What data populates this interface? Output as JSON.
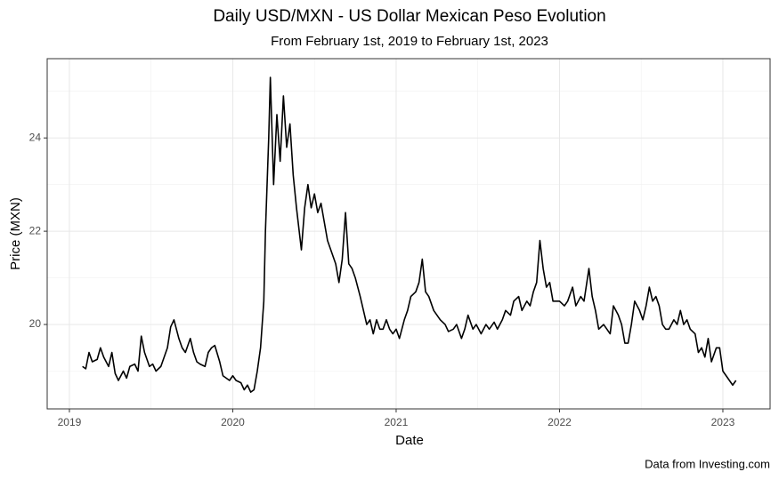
{
  "chart_data": {
    "type": "line",
    "title": "Daily USD/MXN - US Dollar Mexican Peso Evolution",
    "subtitle": "From February 1st, 2019 to February 1st, 2023",
    "x_label": "Date",
    "y_label": "Price (MXN)",
    "caption": "Data from Investing.com",
    "color": "#000000",
    "grid": true,
    "xlim": [
      2018.864,
      2023.289
    ],
    "xticks": [
      2019,
      2020,
      2021,
      2022,
      2023
    ],
    "ylim": [
      18.19,
      25.7
    ],
    "yticks": [
      20,
      22,
      24
    ],
    "x": [
      2019.08,
      2019.1,
      2019.12,
      2019.14,
      2019.17,
      2019.19,
      2019.21,
      2019.24,
      2019.26,
      2019.28,
      2019.3,
      2019.33,
      2019.35,
      2019.37,
      2019.4,
      2019.42,
      2019.44,
      2019.46,
      2019.49,
      2019.51,
      2019.53,
      2019.56,
      2019.58,
      2019.6,
      2019.62,
      2019.64,
      2019.67,
      2019.69,
      2019.71,
      2019.74,
      2019.76,
      2019.78,
      2019.8,
      2019.83,
      2019.85,
      2019.87,
      2019.89,
      2019.92,
      2019.94,
      2019.96,
      2019.98,
      2020.0,
      2020.02,
      2020.05,
      2020.07,
      2020.09,
      2020.11,
      2020.13,
      2020.15,
      2020.17,
      2020.19,
      2020.2,
      2020.22,
      2020.23,
      2020.25,
      2020.27,
      2020.29,
      2020.31,
      2020.33,
      2020.35,
      2020.37,
      2020.39,
      2020.42,
      2020.44,
      2020.46,
      2020.48,
      2020.5,
      2020.52,
      2020.54,
      2020.56,
      2020.58,
      2020.61,
      2020.63,
      2020.65,
      2020.67,
      2020.69,
      2020.71,
      2020.73,
      2020.75,
      2020.78,
      2020.8,
      2020.82,
      2020.84,
      2020.86,
      2020.88,
      2020.9,
      2020.92,
      2020.94,
      2020.96,
      2020.98,
      2021.0,
      2021.02,
      2021.05,
      2021.07,
      2021.09,
      2021.12,
      2021.14,
      2021.16,
      2021.18,
      2021.2,
      2021.23,
      2021.25,
      2021.27,
      2021.3,
      2021.32,
      2021.35,
      2021.37,
      2021.4,
      2021.42,
      2021.44,
      2021.47,
      2021.49,
      2021.52,
      2021.55,
      2021.57,
      2021.6,
      2021.62,
      2021.65,
      2021.67,
      2021.7,
      2021.72,
      2021.75,
      2021.77,
      2021.8,
      2021.82,
      2021.84,
      2021.86,
      2021.88,
      2021.9,
      2021.92,
      2021.94,
      2021.96,
      2021.98,
      2022.0,
      2022.03,
      2022.05,
      2022.08,
      2022.1,
      2022.13,
      2022.15,
      2022.18,
      2022.2,
      2022.22,
      2022.24,
      2022.27,
      2022.29,
      2022.31,
      2022.33,
      2022.36,
      2022.38,
      2022.4,
      2022.42,
      2022.44,
      2022.46,
      2022.49,
      2022.51,
      2022.53,
      2022.55,
      2022.57,
      2022.59,
      2022.61,
      2022.63,
      2022.65,
      2022.67,
      2022.7,
      2022.72,
      2022.74,
      2022.76,
      2022.78,
      2022.8,
      2022.83,
      2022.85,
      2022.87,
      2022.89,
      2022.91,
      2022.93,
      2022.96,
      2022.98,
      2023.0,
      2023.02,
      2023.04,
      2023.06,
      2023.08
    ],
    "values": [
      19.1,
      19.05,
      19.4,
      19.2,
      19.25,
      19.5,
      19.3,
      19.1,
      19.4,
      18.95,
      18.8,
      19.0,
      18.85,
      19.1,
      19.15,
      19.0,
      19.75,
      19.4,
      19.1,
      19.15,
      19.0,
      19.1,
      19.3,
      19.5,
      19.95,
      20.1,
      19.7,
      19.5,
      19.4,
      19.7,
      19.4,
      19.2,
      19.15,
      19.1,
      19.4,
      19.5,
      19.55,
      19.2,
      18.9,
      18.85,
      18.8,
      18.9,
      18.8,
      18.75,
      18.6,
      18.7,
      18.55,
      18.6,
      19.0,
      19.5,
      20.5,
      22.0,
      24.0,
      25.3,
      23.0,
      24.5,
      23.5,
      24.9,
      23.8,
      24.3,
      23.2,
      22.5,
      21.6,
      22.5,
      23.0,
      22.5,
      22.8,
      22.4,
      22.6,
      22.2,
      21.8,
      21.5,
      21.3,
      20.9,
      21.4,
      22.4,
      21.3,
      21.2,
      21.0,
      20.6,
      20.3,
      20.0,
      20.1,
      19.8,
      20.1,
      19.9,
      19.9,
      20.1,
      19.9,
      19.8,
      19.9,
      19.7,
      20.1,
      20.3,
      20.6,
      20.7,
      20.9,
      21.4,
      20.7,
      20.6,
      20.3,
      20.2,
      20.1,
      20.0,
      19.85,
      19.9,
      20.0,
      19.7,
      19.9,
      20.2,
      19.9,
      20.0,
      19.8,
      20.0,
      19.9,
      20.05,
      19.9,
      20.1,
      20.3,
      20.2,
      20.5,
      20.6,
      20.3,
      20.5,
      20.4,
      20.7,
      20.9,
      21.8,
      21.2,
      20.8,
      20.9,
      20.5,
      20.5,
      20.5,
      20.4,
      20.5,
      20.8,
      20.4,
      20.6,
      20.5,
      21.2,
      20.6,
      20.3,
      19.9,
      20.0,
      19.9,
      19.8,
      20.4,
      20.2,
      20.0,
      19.6,
      19.6,
      20.0,
      20.5,
      20.3,
      20.1,
      20.4,
      20.8,
      20.5,
      20.6,
      20.4,
      20.0,
      19.9,
      19.9,
      20.1,
      20.0,
      20.3,
      20.0,
      20.1,
      19.9,
      19.8,
      19.4,
      19.5,
      19.3,
      19.7,
      19.2,
      19.5,
      19.5,
      19.0,
      18.9,
      18.8,
      18.7,
      18.8
    ]
  }
}
